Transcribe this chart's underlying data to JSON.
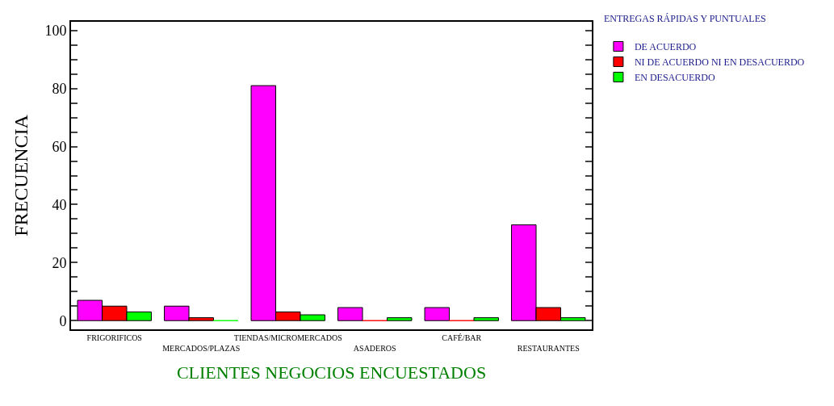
{
  "chart_data": {
    "type": "bar",
    "xlabel": "CLIENTES NEGOCIOS ENCUESTADOS",
    "ylabel": "FRECUENCIA",
    "legend_title": "ENTREGAS RÁPIDAS Y PUNTUALES",
    "categories": [
      "FRIGORIFICOS",
      "MERCADOS/PLAZAS",
      "TIENDAS/MICROMERCADOS",
      "ASADEROS",
      "CAFÉ/BAR",
      "RESTAURANTES"
    ],
    "series": [
      {
        "name": "DE ACUERDO",
        "color": "#ff00ff",
        "values": [
          7,
          5,
          81,
          4.5,
          4.5,
          33
        ]
      },
      {
        "name": "NI DE ACUERDO NI EN DESACUERDO",
        "color": "#ff0000",
        "values": [
          5,
          1,
          3,
          0,
          0,
          4.5
        ]
      },
      {
        "name": "EN DESACUERDO",
        "color": "#00ff00",
        "values": [
          3,
          0,
          2,
          1,
          1,
          1
        ]
      }
    ],
    "ylim": [
      -3,
      103
    ],
    "yticks": [
      0,
      {
        "value": 5,
        "label": null
      },
      {
        "value": 10,
        "label": null
      },
      {
        "value": 15,
        "label": null
      },
      20,
      {
        "value": 25,
        "label": null
      },
      {
        "value": 30,
        "label": null
      },
      {
        "value": 35,
        "label": null
      },
      40,
      {
        "value": 45,
        "label": null
      },
      {
        "value": 50,
        "label": null
      },
      {
        "value": 55,
        "label": null
      },
      60,
      {
        "value": 65,
        "label": null
      },
      {
        "value": 70,
        "label": null
      },
      {
        "value": 75,
        "label": null
      },
      80,
      {
        "value": 85,
        "label": null
      },
      {
        "value": 90,
        "label": null
      },
      {
        "value": 95,
        "label": null
      },
      100
    ],
    "grid": false,
    "legend": "top right"
  }
}
